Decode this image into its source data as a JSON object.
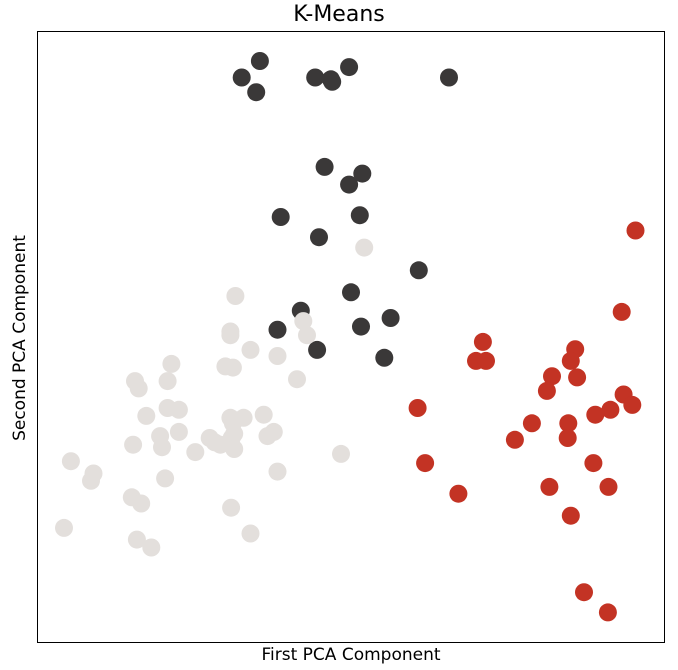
{
  "chart_data": {
    "type": "scatter",
    "title": "K-Means",
    "xlabel": "First PCA Component",
    "ylabel": "Second PCA Component",
    "xlim": [
      0,
      100
    ],
    "ylim": [
      0,
      100
    ],
    "grid": false,
    "ticks": false,
    "colors": {
      "cluster_0": "#3a3838",
      "cluster_1": "#e3dfdc",
      "cluster_2": "#c33324"
    },
    "series": [
      {
        "cluster": 0,
        "color": "#3a3838",
        "points": [
          [
            35.5,
            95.1
          ],
          [
            32.6,
            92.4
          ],
          [
            34.9,
            90.0
          ],
          [
            44.3,
            92.4
          ],
          [
            46.8,
            92.1
          ],
          [
            47.0,
            91.7
          ],
          [
            49.7,
            94.1
          ],
          [
            65.6,
            92.4
          ],
          [
            51.8,
            76.7
          ],
          [
            45.8,
            77.8
          ],
          [
            49.7,
            74.9
          ],
          [
            51.4,
            69.9
          ],
          [
            38.8,
            69.6
          ],
          [
            44.9,
            66.3
          ],
          [
            60.8,
            60.9
          ],
          [
            50.0,
            57.3
          ],
          [
            42.0,
            54.3
          ],
          [
            38.3,
            51.2
          ],
          [
            51.6,
            51.7
          ],
          [
            56.3,
            53.1
          ],
          [
            44.6,
            47.9
          ],
          [
            55.3,
            46.6
          ]
        ]
      },
      {
        "cluster": 1,
        "color": "#e3dfdc",
        "points": [
          [
            52.1,
            64.6
          ],
          [
            31.6,
            56.7
          ],
          [
            30.8,
            50.9
          ],
          [
            30.8,
            50.3
          ],
          [
            42.4,
            52.6
          ],
          [
            43.0,
            50.3
          ],
          [
            34.0,
            47.9
          ],
          [
            38.3,
            46.9
          ],
          [
            41.4,
            43.1
          ],
          [
            21.4,
            45.6
          ],
          [
            20.8,
            42.8
          ],
          [
            30.0,
            45.2
          ],
          [
            31.2,
            45.0
          ],
          [
            15.6,
            42.8
          ],
          [
            16.2,
            41.6
          ],
          [
            20.8,
            38.4
          ],
          [
            22.6,
            38.1
          ],
          [
            17.4,
            37.1
          ],
          [
            15.3,
            32.4
          ],
          [
            30.8,
            36.8
          ],
          [
            31.2,
            35.9
          ],
          [
            32.9,
            36.8
          ],
          [
            36.1,
            37.3
          ],
          [
            31.4,
            34.2
          ],
          [
            19.6,
            33.8
          ],
          [
            22.6,
            34.5
          ],
          [
            27.5,
            33.5
          ],
          [
            29.2,
            32.4
          ],
          [
            31.0,
            33.5
          ],
          [
            37.7,
            34.5
          ],
          [
            36.7,
            33.8
          ],
          [
            28.3,
            32.8
          ],
          [
            31.4,
            31.7
          ],
          [
            25.2,
            31.2
          ],
          [
            19.9,
            32.0
          ],
          [
            48.4,
            30.9
          ],
          [
            5.4,
            29.7
          ],
          [
            9.0,
            27.7
          ],
          [
            8.6,
            26.5
          ],
          [
            38.3,
            28.0
          ],
          [
            20.4,
            26.9
          ],
          [
            15.1,
            23.8
          ],
          [
            16.6,
            22.8
          ],
          [
            30.9,
            22.1
          ],
          [
            4.3,
            18.8
          ],
          [
            15.9,
            16.9
          ],
          [
            18.2,
            15.6
          ],
          [
            34.0,
            17.9
          ]
        ]
      },
      {
        "cluster": 2,
        "color": "#c33324",
        "points": [
          [
            95.3,
            67.4
          ],
          [
            93.1,
            54.1
          ],
          [
            71.0,
            49.2
          ],
          [
            69.9,
            46.1
          ],
          [
            71.5,
            46.1
          ],
          [
            85.7,
            48.0
          ],
          [
            85.0,
            46.1
          ],
          [
            82.0,
            43.6
          ],
          [
            86.0,
            43.4
          ],
          [
            93.4,
            40.6
          ],
          [
            81.2,
            41.2
          ],
          [
            94.8,
            38.9
          ],
          [
            60.6,
            38.4
          ],
          [
            91.3,
            38.1
          ],
          [
            88.9,
            37.3
          ],
          [
            78.8,
            35.9
          ],
          [
            84.6,
            35.9
          ],
          [
            84.5,
            33.5
          ],
          [
            76.1,
            33.2
          ],
          [
            61.8,
            29.4
          ],
          [
            88.6,
            29.4
          ],
          [
            67.1,
            24.4
          ],
          [
            81.6,
            25.5
          ],
          [
            91.0,
            25.5
          ],
          [
            85.0,
            20.8
          ],
          [
            87.1,
            8.3
          ],
          [
            90.9,
            5.0
          ]
        ]
      }
    ]
  }
}
